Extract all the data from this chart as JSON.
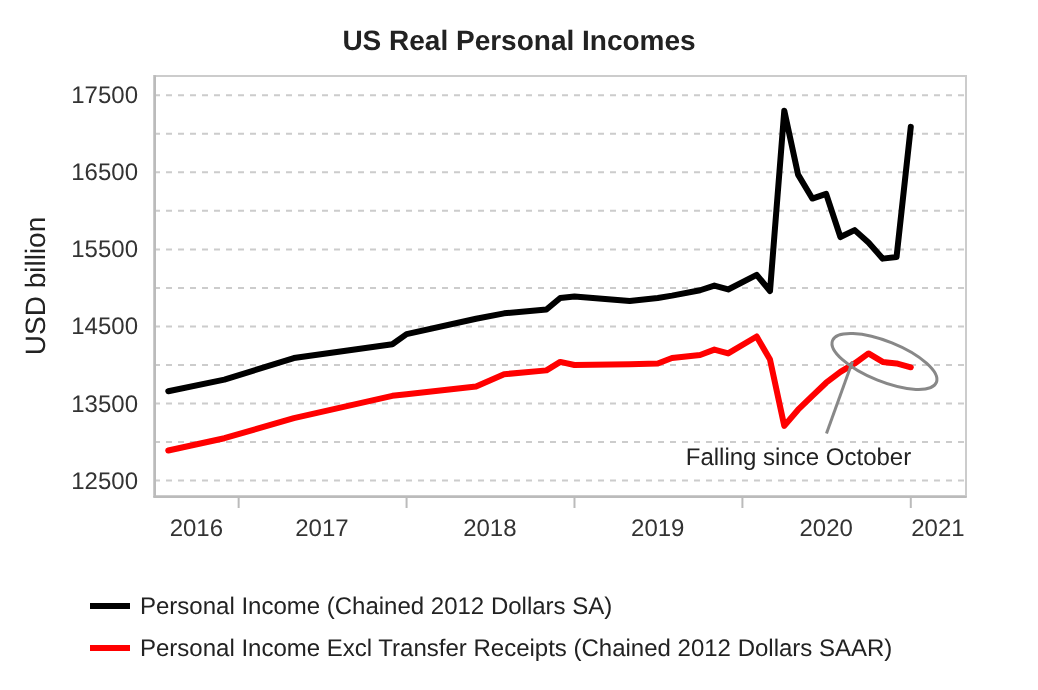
{
  "chart_data": {
    "type": "line",
    "title": "US Real Personal Incomes",
    "ylabel": "USD billion",
    "x": [
      "2016-08",
      "2016-12",
      "2017-05",
      "2017-12",
      "2018-01",
      "2018-06",
      "2018-08",
      "2018-11",
      "2018-12",
      "2019-01",
      "2019-05",
      "2019-07",
      "2019-08",
      "2019-10",
      "2019-11",
      "2019-12",
      "2020-02",
      "2020-03",
      "2020-04",
      "2020-05",
      "2020-06",
      "2020-07",
      "2020-08",
      "2020-09",
      "2020-10",
      "2020-11",
      "2020-12",
      "2021-01"
    ],
    "series": [
      {
        "name": "Personal Income (Chained 2012 Dollars SA)",
        "color": "#000000",
        "values": [
          13660,
          13810,
          14090,
          14270,
          14400,
          14600,
          14670,
          14720,
          14870,
          14890,
          14830,
          14870,
          14900,
          14970,
          15030,
          14980,
          15170,
          14960,
          17300,
          16470,
          16160,
          16220,
          15660,
          15750,
          15590,
          15380,
          15400,
          17090
        ]
      },
      {
        "name": "Personal Income Excl Transfer Receipts (Chained 2012 Dollars SAAR)",
        "color": "#ff0000",
        "values": [
          12890,
          13050,
          13310,
          13600,
          13620,
          13720,
          13880,
          13930,
          14040,
          14000,
          14010,
          14020,
          14090,
          14130,
          14200,
          14150,
          14370,
          14070,
          13210,
          13420,
          13600,
          13770,
          13910,
          14020,
          14150,
          14040,
          14020,
          13970
        ]
      }
    ],
    "xlim": [
      "2016-07",
      "2021-05"
    ],
    "xticks": [
      {
        "value": "2017-01",
        "label": null
      },
      {
        "value": "2018-01",
        "label": null
      },
      {
        "value": "2019-01",
        "label": null
      },
      {
        "value": "2020-01",
        "label": null
      },
      {
        "value": "2021-01",
        "label": null
      },
      {
        "value": "2016-10",
        "label": "2016"
      },
      {
        "value": "2017-07",
        "label": "2017"
      },
      {
        "value": "2018-07",
        "label": "2018"
      },
      {
        "value": "2019-07",
        "label": "2019"
      },
      {
        "value": "2020-07",
        "label": "2020"
      },
      {
        "value": "2021-03",
        "label": "2021"
      }
    ],
    "ylim": [
      12300,
      17750
    ],
    "yticks": [
      12500,
      {
        "value": 13000,
        "label": null
      },
      13500,
      {
        "value": 14000,
        "label": null
      },
      14500,
      {
        "value": 15000,
        "label": null
      },
      15500,
      {
        "value": 16000,
        "label": null
      },
      16500,
      {
        "value": 17000,
        "label": null
      },
      17500
    ],
    "grid": "y",
    "legend": "bottom",
    "marker": "none",
    "line_style": "solid",
    "annotations": [
      {
        "text": "Falling since October",
        "x": "2020-10",
        "y": 14150
      }
    ]
  }
}
